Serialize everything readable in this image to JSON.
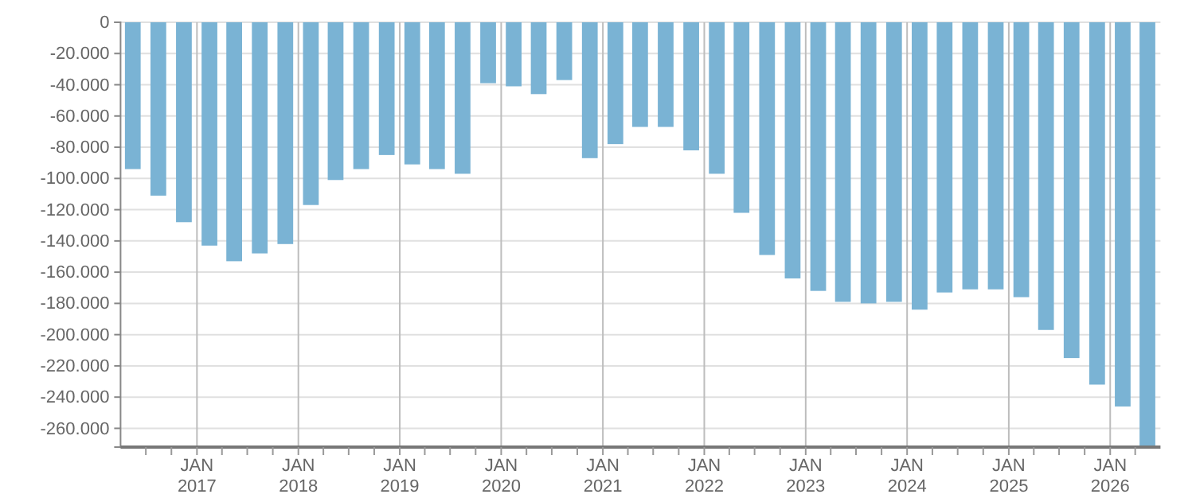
{
  "chart_data": {
    "type": "bar",
    "color": "#7ab3d4",
    "grid": true,
    "x": [
      "2016-05-15",
      "2016-08-15",
      "2016-11-15",
      "2017-02-15",
      "2017-05-15",
      "2017-08-15",
      "2017-11-15",
      "2018-02-15",
      "2018-05-15",
      "2018-08-15",
      "2018-11-15",
      "2019-02-15",
      "2019-05-15",
      "2019-08-15",
      "2019-11-15",
      "2020-02-15",
      "2020-05-15",
      "2020-08-15",
      "2020-11-15",
      "2021-02-15",
      "2021-05-15",
      "2021-08-15",
      "2021-11-15",
      "2022-02-15",
      "2022-05-15",
      "2022-08-15",
      "2022-11-15",
      "2023-02-15",
      "2023-05-15",
      "2023-08-15",
      "2023-11-15",
      "2024-02-15",
      "2024-05-15",
      "2024-08-15",
      "2024-11-15",
      "2025-02-15",
      "2025-05-15",
      "2025-08-15",
      "2025-11-15",
      "2026-02-15",
      "2026-05-15"
    ],
    "values": [
      -94000,
      -111000,
      -128000,
      -143000,
      -153000,
      -148000,
      -142000,
      -117000,
      -101000,
      -94000,
      -85000,
      -91000,
      -94000,
      -97000,
      -39000,
      -41000,
      -46000,
      -37000,
      -87000,
      -78000,
      -67000,
      -67000,
      -82000,
      -97000,
      -122000,
      -149000,
      -164000,
      -172000,
      -179000,
      -180000,
      -179000,
      -184000,
      -173000,
      -171000,
      -171000,
      -176000,
      -197000,
      -215000,
      -232000,
      -246000,
      -272000
    ],
    "xlim": [
      "2016-04",
      "2026-07"
    ],
    "xticks": [
      {
        "value": "2016-07",
        "label": null
      },
      {
        "value": "2016-10",
        "label": null
      },
      {
        "value": "2017-01",
        "label": "JAN\n2017"
      },
      {
        "value": "2017-04",
        "label": null
      },
      {
        "value": "2017-07",
        "label": null
      },
      {
        "value": "2017-10",
        "label": null
      },
      {
        "value": "2018-01",
        "label": "JAN\n2018"
      },
      {
        "value": "2018-04",
        "label": null
      },
      {
        "value": "2018-07",
        "label": null
      },
      {
        "value": "2018-10",
        "label": null
      },
      {
        "value": "2019-01",
        "label": "JAN\n2019"
      },
      {
        "value": "2019-04",
        "label": null
      },
      {
        "value": "2019-07",
        "label": null
      },
      {
        "value": "2019-10",
        "label": null
      },
      {
        "value": "2020-01",
        "label": "JAN\n2020"
      },
      {
        "value": "2020-04",
        "label": null
      },
      {
        "value": "2020-07",
        "label": null
      },
      {
        "value": "2020-10",
        "label": null
      },
      {
        "value": "2021-01",
        "label": "JAN\n2021"
      },
      {
        "value": "2021-04",
        "label": null
      },
      {
        "value": "2021-07",
        "label": null
      },
      {
        "value": "2021-10",
        "label": null
      },
      {
        "value": "2022-01",
        "label": "JAN\n2022"
      },
      {
        "value": "2022-04",
        "label": null
      },
      {
        "value": "2022-07",
        "label": null
      },
      {
        "value": "2022-10",
        "label": null
      },
      {
        "value": "2023-01",
        "label": "JAN\n2023"
      },
      {
        "value": "2023-04",
        "label": null
      },
      {
        "value": "2023-07",
        "label": null
      },
      {
        "value": "2023-10",
        "label": null
      },
      {
        "value": "2024-01",
        "label": "JAN\n2024"
      },
      {
        "value": "2024-04",
        "label": null
      },
      {
        "value": "2024-07",
        "label": null
      },
      {
        "value": "2024-10",
        "label": null
      },
      {
        "value": "2025-01",
        "label": "JAN\n2025"
      },
      {
        "value": "2025-04",
        "label": null
      },
      {
        "value": "2025-07",
        "label": null
      },
      {
        "value": "2025-10",
        "label": null
      },
      {
        "value": "2026-01",
        "label": "JAN\n2026"
      },
      {
        "value": "2026-04",
        "label": null
      }
    ],
    "ylim": [
      -272000,
      0
    ],
    "yticks": [
      {
        "value": 0,
        "label": "0"
      },
      {
        "value": -20000,
        "label": "-20.000"
      },
      {
        "value": -40000,
        "label": "-40.000"
      },
      {
        "value": -60000,
        "label": "-60.000"
      },
      {
        "value": -80000,
        "label": "-80.000"
      },
      {
        "value": -100000,
        "label": "-100.000"
      },
      {
        "value": -120000,
        "label": "-120.000"
      },
      {
        "value": -140000,
        "label": "-140.000"
      },
      {
        "value": -160000,
        "label": "-160.000"
      },
      {
        "value": -180000,
        "label": "-180.000"
      },
      {
        "value": -200000,
        "label": "-200.000"
      },
      {
        "value": -220000,
        "label": "-220.000"
      },
      {
        "value": -240000,
        "label": "-240.000"
      },
      {
        "value": -260000,
        "label": "-260.000"
      }
    ]
  }
}
